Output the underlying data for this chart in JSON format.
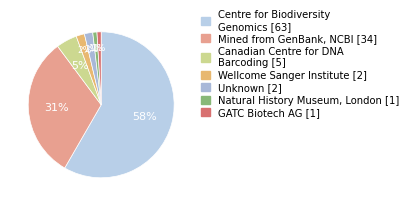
{
  "labels": [
    "Centre for Biodiversity\nGenomics [63]",
    "Mined from GenBank, NCBI [34]",
    "Canadian Centre for DNA\nBarcoding [5]",
    "Wellcome Sanger Institute [2]",
    "Unknown [2]",
    "Natural History Museum, London [1]",
    "GATC Biotech AG [1]"
  ],
  "values": [
    63,
    34,
    5,
    2,
    2,
    1,
    1
  ],
  "colors": [
    "#b8cfe8",
    "#e8a090",
    "#ccd890",
    "#e8b870",
    "#a8b8d8",
    "#88b878",
    "#d87070"
  ],
  "legend_fontsize": 7.2,
  "pct_fontsize": 8,
  "pct_color_large": "white",
  "pct_color_small": "white"
}
